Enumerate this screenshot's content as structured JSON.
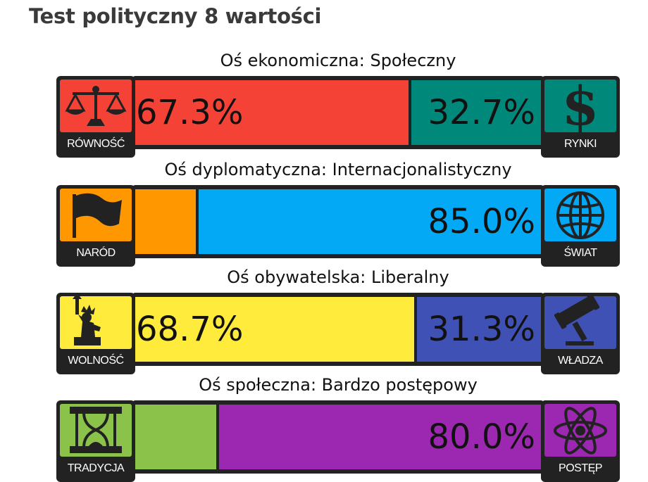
{
  "page_title": "Test polityczny 8 wartości",
  "chart_data": {
    "type": "bar",
    "axes": [
      {
        "title": "Oś ekonomiczna: Społeczny",
        "left": {
          "label": "RÓWNOŚĆ",
          "value": 67.3,
          "text": "67.3%",
          "color": "#f44336",
          "icon": "scales-icon",
          "show_text": true
        },
        "right": {
          "label": "RYNKI",
          "value": 32.7,
          "text": "32.7%",
          "color": "#00897b",
          "icon": "dollar-icon",
          "show_text": true
        }
      },
      {
        "title": "Oś dyplomatyczna: Internacjonalistyczny",
        "left": {
          "label": "NARÓD",
          "value": 15.0,
          "text": "",
          "color": "#ff9800",
          "icon": "flag-icon",
          "show_text": false
        },
        "right": {
          "label": "ŚWIAT",
          "value": 85.0,
          "text": "85.0%",
          "color": "#03a9f4",
          "icon": "globe-icon",
          "show_text": true
        }
      },
      {
        "title": "Oś obywatelska: Liberalny",
        "left": {
          "label": "WOLNOŚĆ",
          "value": 68.7,
          "text": "68.7%",
          "color": "#ffeb3b",
          "icon": "statue-of-liberty-icon",
          "show_text": true
        },
        "right": {
          "label": "WŁADZA",
          "value": 31.3,
          "text": "31.3%",
          "color": "#3f51b5",
          "icon": "gavel-icon",
          "show_text": true
        }
      },
      {
        "title": "Oś społeczna: Bardzo postępowy",
        "left": {
          "label": "TRADYCJA",
          "value": 20.0,
          "text": "",
          "color": "#8bc34a",
          "icon": "hourglass-icon",
          "show_text": false
        },
        "right": {
          "label": "POSTĘP",
          "value": 80.0,
          "text": "80.0%",
          "color": "#9c27b0",
          "icon": "atom-icon",
          "show_text": true
        }
      }
    ]
  }
}
